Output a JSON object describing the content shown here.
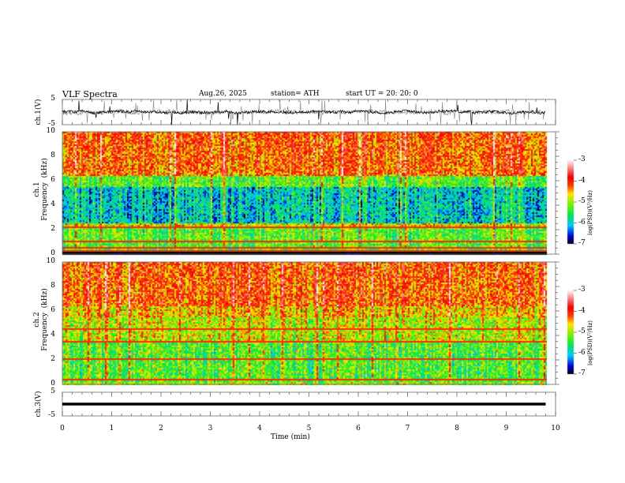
{
  "header": {
    "title": "VLF  Spectra",
    "date": "Aug.26, 2025",
    "station": "station= ATH",
    "start": "start  UT  =    20: 20: 0"
  },
  "chart_data": [
    {
      "type": "line",
      "name": "ch1 waveform",
      "ylabel": "ch.1(V)",
      "ylim": [
        -5,
        5
      ],
      "yticks": [
        "5",
        "-5"
      ],
      "x_range_min": [
        0,
        9.8
      ],
      "description_values": {
        "mean": 0,
        "typical_spread": 1.5
      }
    },
    {
      "type": "heatmap",
      "name": "ch1 spectrogram",
      "ylabel": "ch.1\nFrequency  (kHz)",
      "ylim": [
        0,
        10
      ],
      "yticks": [
        "0",
        "2",
        "4",
        "6",
        "8",
        "10"
      ],
      "colorbar": {
        "label": "log(PSD)(V²/Hz)",
        "range": [
          -7,
          -3
        ],
        "ticks": [
          "-3",
          "-4",
          "-5",
          "-6",
          "-7"
        ]
      },
      "bands_kHz": [
        {
          "range": [
            0,
            2
          ],
          "logpsd": -5.3
        },
        {
          "range": [
            2.5,
            5.5
          ],
          "logpsd": -5.9
        },
        {
          "range": [
            6,
            10
          ],
          "logpsd": -4.3
        }
      ]
    },
    {
      "type": "heatmap",
      "name": "ch2 spectrogram",
      "ylabel": "ch.2\nFrequency  (kHz)",
      "ylim": [
        0,
        10
      ],
      "yticks": [
        "0",
        "2",
        "4",
        "6",
        "8",
        "10"
      ],
      "colorbar": {
        "label": "log(PSD)(V²/Hz)",
        "range": [
          -7,
          -3
        ],
        "ticks": [
          "-3",
          "-4",
          "-5",
          "-6",
          "-7"
        ]
      },
      "bands_kHz": [
        {
          "range": [
            0,
            3.5
          ],
          "logpsd": -5.2
        },
        {
          "range": [
            3.5,
            5.5
          ],
          "logpsd": -5.0
        },
        {
          "range": [
            6,
            10
          ],
          "logpsd": -4.2
        }
      ],
      "lines_kHz": [
        4.6,
        3.5,
        2.1
      ]
    },
    {
      "type": "line",
      "name": "ch3 waveform",
      "ylabel": "ch.3(V)",
      "ylim": [
        -5,
        5
      ],
      "yticks": [
        "5",
        "-5"
      ],
      "constant_value": 0
    }
  ],
  "xaxis": {
    "label": "Time  (min)",
    "ticks": [
      "0",
      "1",
      "2",
      "3",
      "4",
      "5",
      "6",
      "7",
      "8",
      "9",
      "10"
    ],
    "xlim": [
      0,
      10
    ]
  }
}
